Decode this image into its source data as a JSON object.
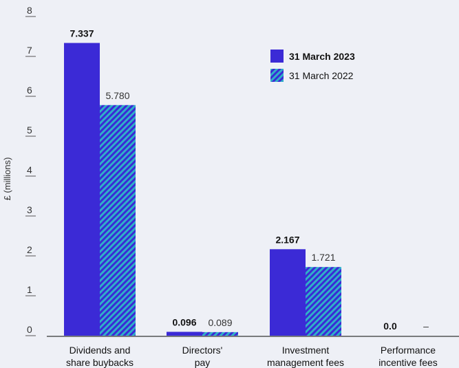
{
  "chart_data": {
    "type": "bar",
    "ylabel": "£ (millions)",
    "ylim": [
      0,
      8
    ],
    "yticks": [
      "0",
      "1",
      "2",
      "3",
      "4",
      "5",
      "6",
      "7",
      "8"
    ],
    "categories": [
      [
        "Dividends and",
        "share buybacks"
      ],
      [
        "Directors'",
        "pay"
      ],
      [
        "Investment",
        "management fees"
      ],
      [
        "Performance",
        "incentive fees"
      ]
    ],
    "series": [
      {
        "name": "31 March 2023",
        "values": [
          7.337,
          0.096,
          2.167,
          0.0
        ],
        "labels": [
          "7.337",
          "0.096",
          "2.167",
          "0.0"
        ],
        "color": "#3b2ad6",
        "style": "solid"
      },
      {
        "name": "31 March 2022",
        "values": [
          5.78,
          0.089,
          1.721,
          null
        ],
        "labels": [
          "5.780",
          "0.089",
          "1.721",
          "–"
        ],
        "color": "#2a9bc6",
        "hatch_color": "#3b2ad6",
        "style": "hatched"
      }
    ],
    "legend_position": "top-right",
    "grid": false
  }
}
